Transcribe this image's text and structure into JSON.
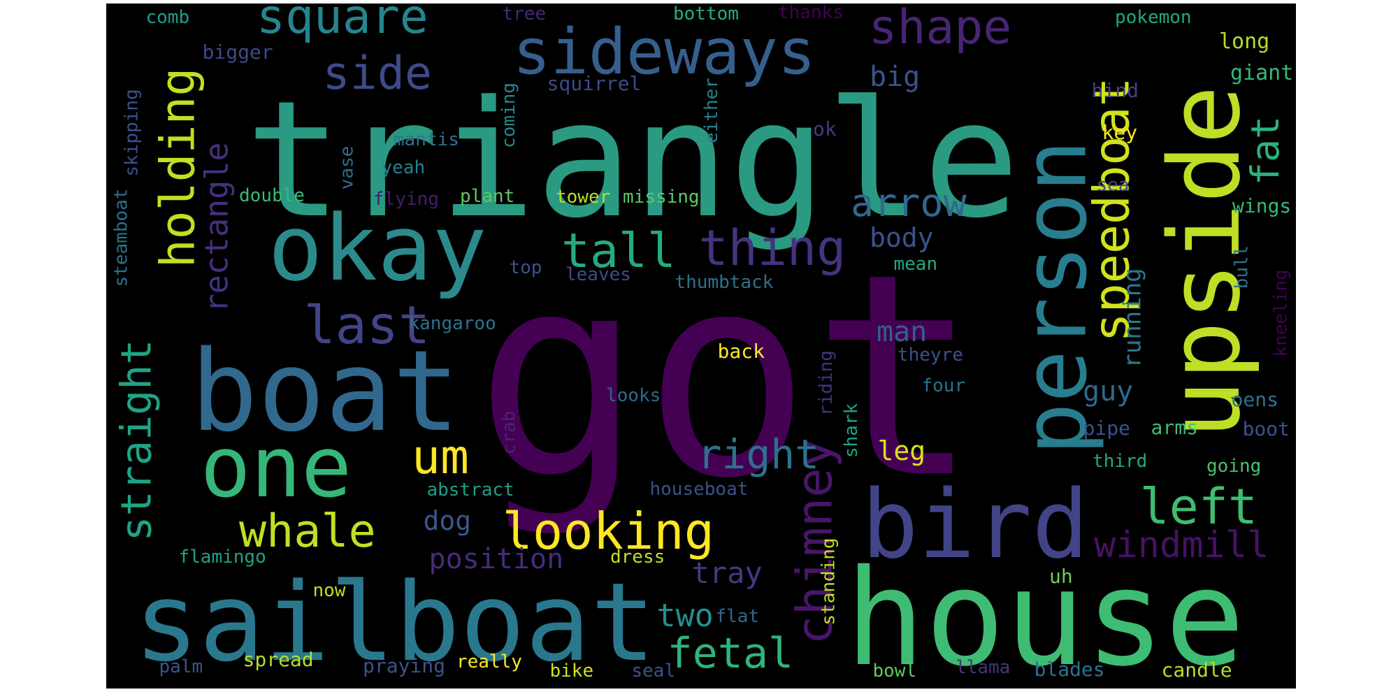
{
  "colors": {
    "background": "#000000",
    "palette": [
      "#440154",
      "#46337f",
      "#365c8d",
      "#277f8e",
      "#1fa187",
      "#4ac16d",
      "#a0da39",
      "#fde725"
    ]
  },
  "words": [
    {
      "text": "got",
      "color": "#440154"
    },
    {
      "text": "triangle",
      "color": "#2a9a83"
    },
    {
      "text": "house",
      "color": "#3fbc73"
    },
    {
      "text": "boat",
      "color": "#31688e"
    },
    {
      "text": "sailboat",
      "color": "#2a788e"
    },
    {
      "text": "okay",
      "color": "#2c8a8c"
    },
    {
      "text": "person",
      "color": "#287d8e"
    },
    {
      "text": "upside",
      "color": "#bddf26"
    },
    {
      "text": "bird",
      "color": "#414487"
    },
    {
      "text": "one",
      "color": "#35b779"
    },
    {
      "text": "sideways",
      "color": "#355f8d"
    },
    {
      "text": "square",
      "color": "#25858e"
    },
    {
      "text": "shape",
      "color": "#482475"
    },
    {
      "text": "speedboat",
      "color": "#d2e21b"
    },
    {
      "text": "holding",
      "color": "#c2df23"
    },
    {
      "text": "looking",
      "color": "#fde725"
    },
    {
      "text": "whale",
      "color": "#c2df23"
    },
    {
      "text": "last",
      "color": "#414487"
    },
    {
      "text": "straight",
      "color": "#20a386"
    },
    {
      "text": "thing",
      "color": "#46337f"
    },
    {
      "text": "tall",
      "color": "#25ab82"
    },
    {
      "text": "side",
      "color": "#3e4a89"
    },
    {
      "text": "chimney",
      "color": "#481668"
    },
    {
      "text": "left",
      "color": "#3fbc73"
    },
    {
      "text": "fetal",
      "color": "#2fb47c"
    },
    {
      "text": "right",
      "color": "#2c728e"
    },
    {
      "text": "um",
      "color": "#fde725"
    },
    {
      "text": "windmill",
      "color": "#471164"
    },
    {
      "text": "rectangle",
      "color": "#46307e"
    },
    {
      "text": "arrow",
      "color": "#31688e"
    },
    {
      "text": "fat",
      "color": "#2db27d"
    },
    {
      "text": "position",
      "color": "#472c7a"
    },
    {
      "text": "tray",
      "color": "#443983"
    },
    {
      "text": "two",
      "color": "#21918c"
    },
    {
      "text": "dog",
      "color": "#38588c"
    },
    {
      "text": "body",
      "color": "#3b528b"
    },
    {
      "text": "big",
      "color": "#3b528b"
    },
    {
      "text": "guy",
      "color": "#31688e"
    },
    {
      "text": "leg",
      "color": "#d8e219"
    },
    {
      "text": "man",
      "color": "#355f8d"
    },
    {
      "text": "running",
      "color": "#2a788e"
    },
    {
      "text": "comb",
      "color": "#1f9e89"
    },
    {
      "text": "tree",
      "color": "#482878"
    },
    {
      "text": "bottom",
      "color": "#27ad81"
    },
    {
      "text": "thanks",
      "color": "#440154"
    },
    {
      "text": "pokemon",
      "color": "#22a884"
    },
    {
      "text": "long",
      "color": "#b5de2b"
    },
    {
      "text": "giant",
      "color": "#37b878"
    },
    {
      "text": "bigger",
      "color": "#3e4989"
    },
    {
      "text": "squirrel",
      "color": "#3e4a89"
    },
    {
      "text": "hind",
      "color": "#424086"
    },
    {
      "text": "skipping",
      "color": "#3b528b"
    },
    {
      "text": "steamboat",
      "color": "#2c728e"
    },
    {
      "text": "coming",
      "color": "#24878e"
    },
    {
      "text": "either",
      "color": "#27808e"
    },
    {
      "text": "mantis",
      "color": "#2c738e"
    },
    {
      "text": "ok",
      "color": "#443a83"
    },
    {
      "text": "key",
      "color": "#fde725"
    },
    {
      "text": "vase",
      "color": "#2e6f8e"
    },
    {
      "text": "yeah",
      "color": "#26818e"
    },
    {
      "text": "double",
      "color": "#3aba76"
    },
    {
      "text": "flying",
      "color": "#481b6d"
    },
    {
      "text": "plant",
      "color": "#5ec962"
    },
    {
      "text": "tower",
      "color": "#b5de2b"
    },
    {
      "text": "missing",
      "color": "#5ec962"
    },
    {
      "text": "sea",
      "color": "#3e4a89"
    },
    {
      "text": "wings",
      "color": "#37b878"
    },
    {
      "text": "top",
      "color": "#3b528b"
    },
    {
      "text": "leaves",
      "color": "#3e4a89"
    },
    {
      "text": "thumbtack",
      "color": "#2c728e"
    },
    {
      "text": "mean",
      "color": "#22a884"
    },
    {
      "text": "bull",
      "color": "#2c728e"
    },
    {
      "text": "kangaroo",
      "color": "#2c728e"
    },
    {
      "text": "back",
      "color": "#fde725"
    },
    {
      "text": "theyre",
      "color": "#3b528b"
    },
    {
      "text": "kneeling",
      "color": "#440154"
    },
    {
      "text": "riding",
      "color": "#46327e"
    },
    {
      "text": "four",
      "color": "#2c728e"
    },
    {
      "text": "looks",
      "color": "#31688e"
    },
    {
      "text": "oens",
      "color": "#2c728e"
    },
    {
      "text": "crab",
      "color": "#482475"
    },
    {
      "text": "shark",
      "color": "#20a386"
    },
    {
      "text": "pipe",
      "color": "#3b528b"
    },
    {
      "text": "arms",
      "color": "#3fbc73"
    },
    {
      "text": "boot",
      "color": "#3b528b"
    },
    {
      "text": "third",
      "color": "#22a884"
    },
    {
      "text": "abstract",
      "color": "#1f9e89"
    },
    {
      "text": "houseboat",
      "color": "#3b528b"
    },
    {
      "text": "going",
      "color": "#4ac16d"
    },
    {
      "text": "flamingo",
      "color": "#20a386"
    },
    {
      "text": "dress",
      "color": "#c2df23"
    },
    {
      "text": "standing",
      "color": "#c2df23"
    },
    {
      "text": "uh",
      "color": "#6ece58"
    },
    {
      "text": "now",
      "color": "#c2df23"
    },
    {
      "text": "flat",
      "color": "#31688e"
    },
    {
      "text": "spread",
      "color": "#b5de2b"
    },
    {
      "text": "praying",
      "color": "#3b528b"
    },
    {
      "text": "really",
      "color": "#fde725"
    },
    {
      "text": "palm",
      "color": "#38588c"
    },
    {
      "text": "bike",
      "color": "#d2e21b"
    },
    {
      "text": "seal",
      "color": "#3b528b"
    },
    {
      "text": "bowl",
      "color": "#5ec962"
    },
    {
      "text": "llama",
      "color": "#46337f"
    },
    {
      "text": "blades",
      "color": "#2c728e"
    },
    {
      "text": "candle",
      "color": "#b5de2b"
    }
  ]
}
